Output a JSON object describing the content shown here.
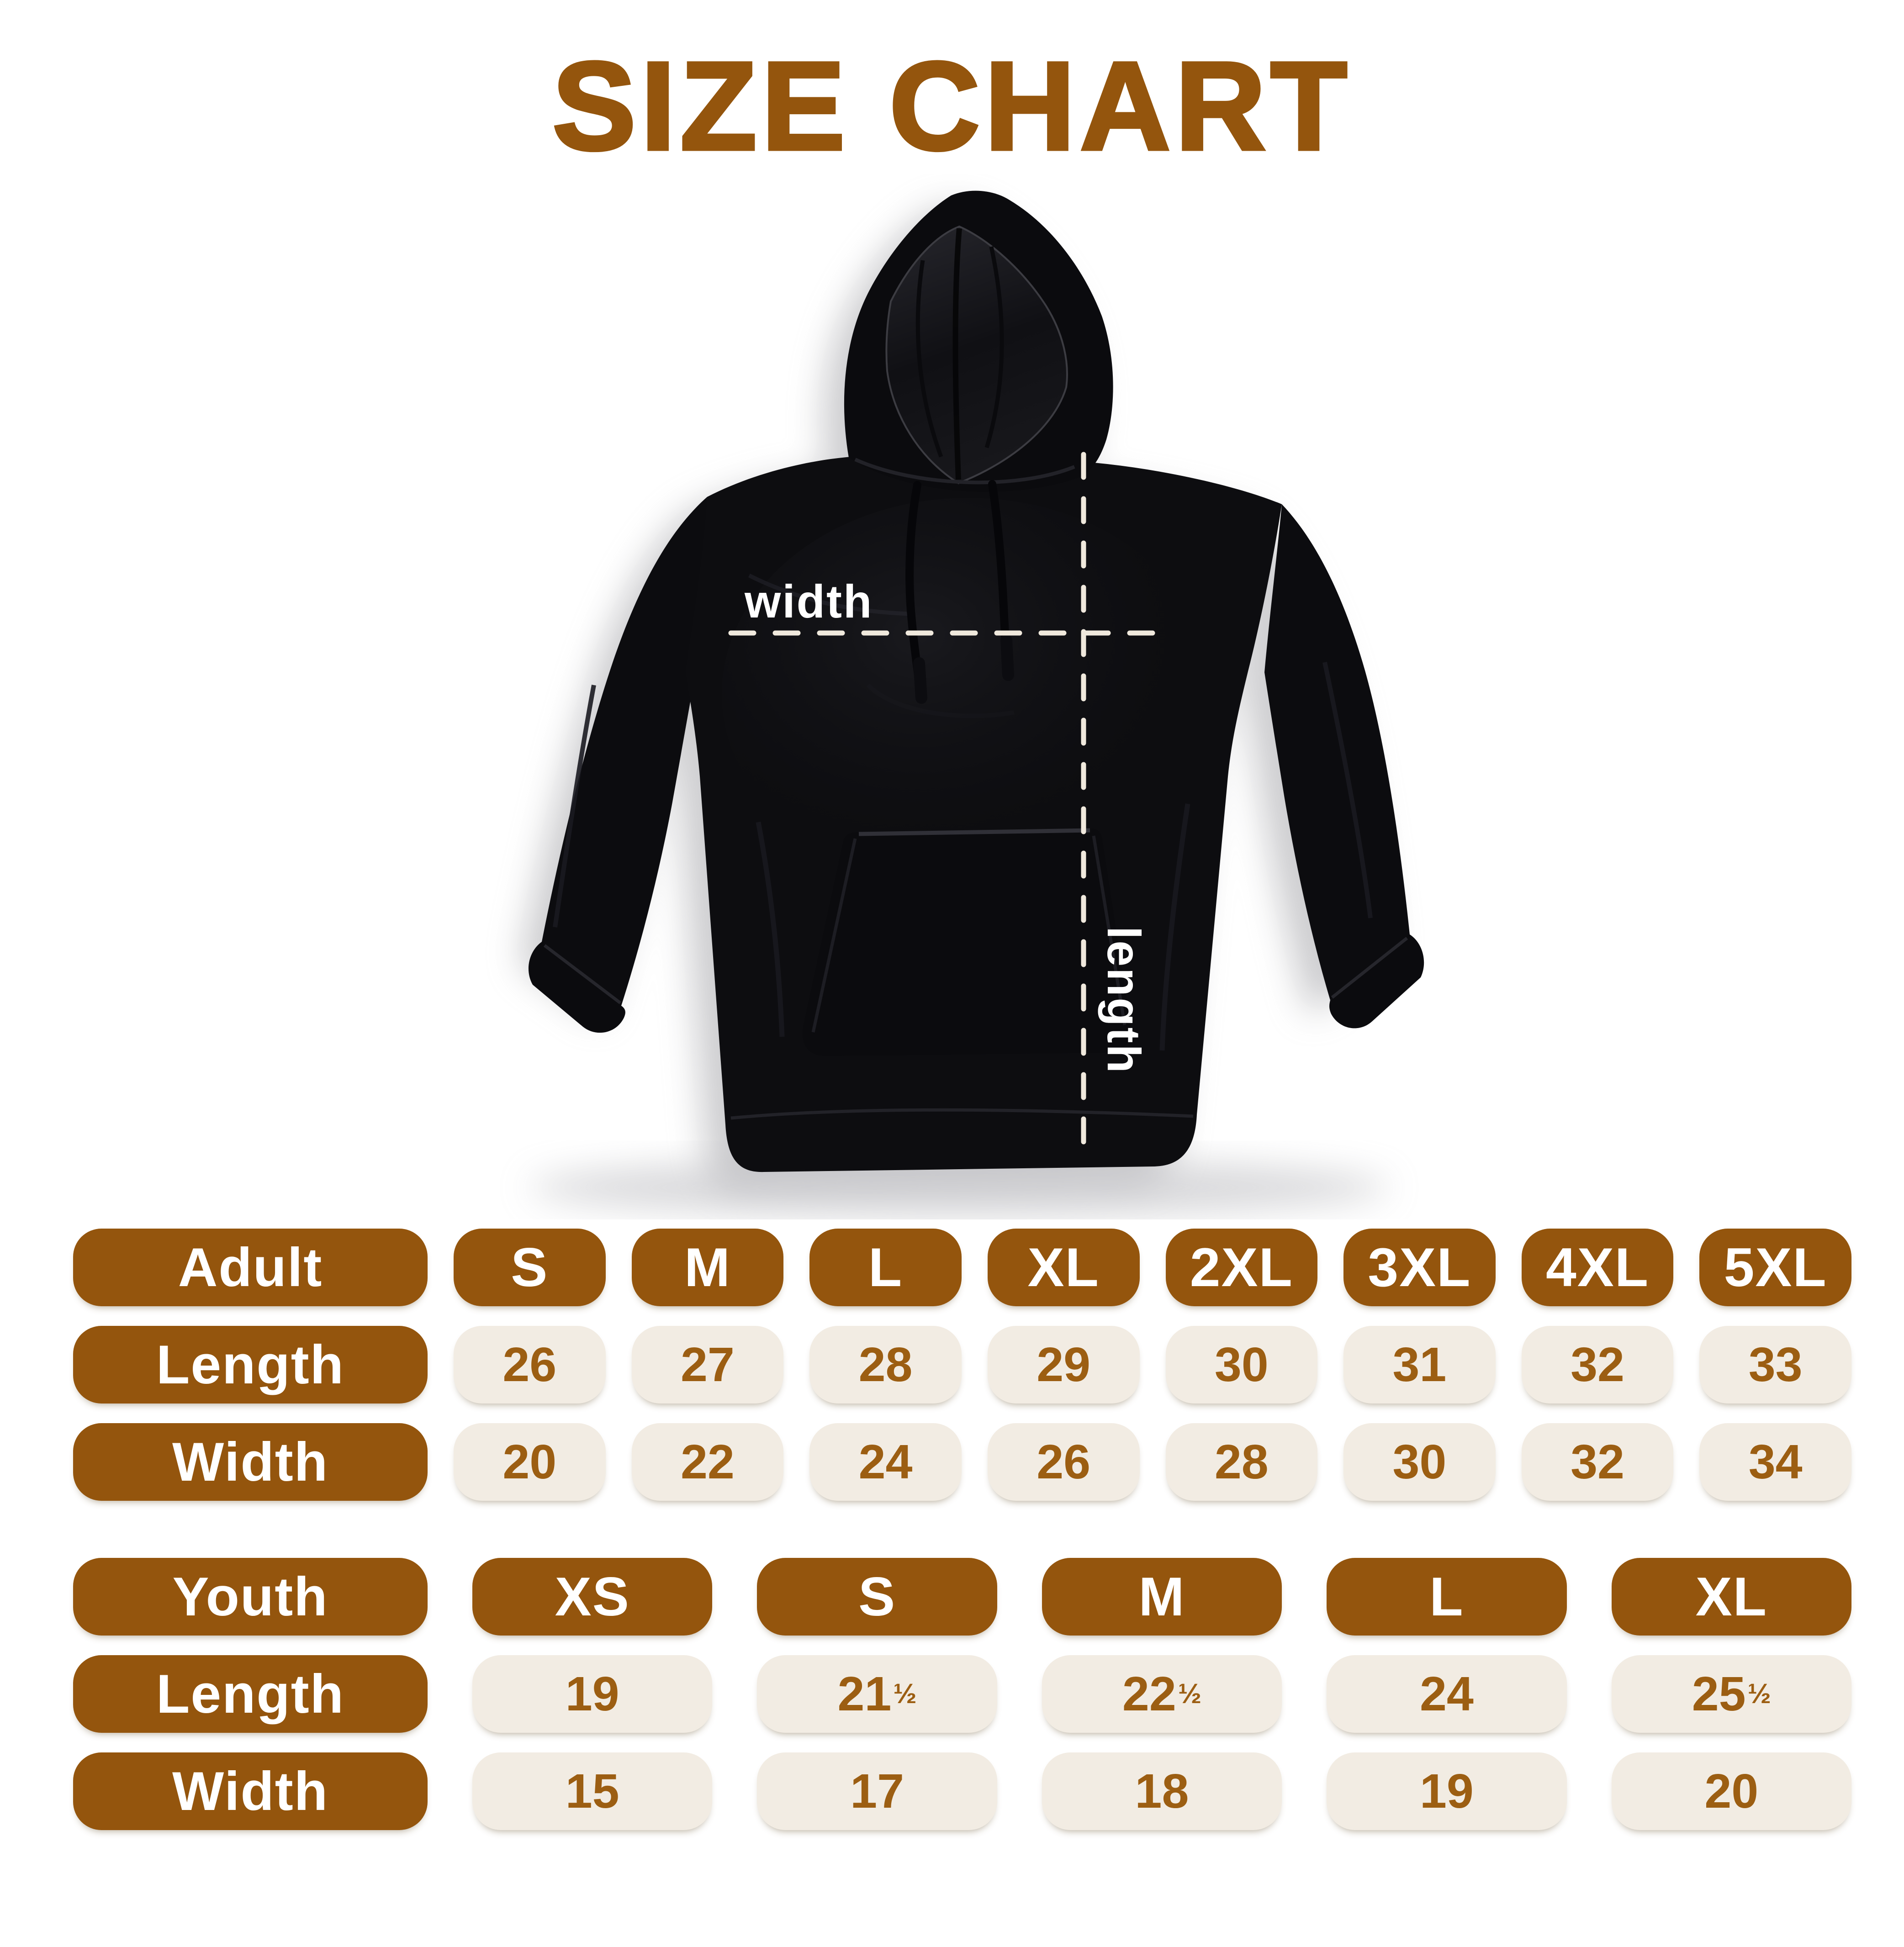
{
  "title": "SIZE CHART",
  "colors": {
    "brown": "#94550D",
    "num-brown": "#9C5E12",
    "beige": "#F2ECE3",
    "dash": "#F0E9DD",
    "white": "#FFFFFF",
    "page-bg": "#FFFFFF"
  },
  "diagram": {
    "garment": "black pullover hoodie",
    "width_label": "width",
    "length_label": "length"
  },
  "adult_table": {
    "header": {
      "label": "Adult",
      "sizes": [
        "S",
        "M",
        "L",
        "XL",
        "2XL",
        "3XL",
        "4XL",
        "5XL"
      ]
    },
    "rows": [
      {
        "label": "Length",
        "values": [
          "26",
          "27",
          "28",
          "29",
          "30",
          "31",
          "32",
          "33"
        ]
      },
      {
        "label": "Width",
        "values": [
          "20",
          "22",
          "24",
          "26",
          "28",
          "30",
          "32",
          "34"
        ]
      }
    ]
  },
  "youth_table": {
    "header": {
      "label": "Youth",
      "sizes": [
        "XS",
        "S",
        "M",
        "L",
        "XL"
      ]
    },
    "rows": [
      {
        "label": "Length",
        "values": [
          "19",
          "21½",
          "22½",
          "24",
          "25½"
        ]
      },
      {
        "label": "Width",
        "values": [
          "15",
          "17",
          "18",
          "19",
          "20"
        ]
      }
    ]
  }
}
